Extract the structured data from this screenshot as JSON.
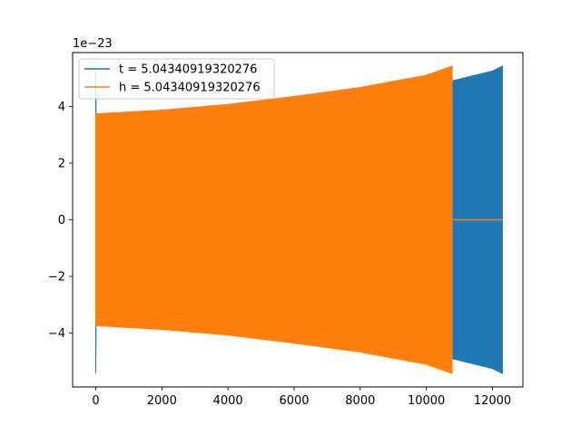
{
  "chart_data": {
    "type": "line",
    "title": "",
    "xlabel": "",
    "ylabel": "",
    "y_offset_text": "1e−23",
    "xlim": [
      -700,
      12920
    ],
    "ylim": [
      -5.9,
      5.9
    ],
    "x_ticks": [
      {
        "value": 0,
        "label": "0"
      },
      {
        "value": 2000,
        "label": "2000"
      },
      {
        "value": 4000,
        "label": "4000"
      },
      {
        "value": 6000,
        "label": "6000"
      },
      {
        "value": 8000,
        "label": "8000"
      },
      {
        "value": 10000,
        "label": "10000"
      },
      {
        "value": 12000,
        "label": "12000"
      }
    ],
    "y_ticks": [
      {
        "value": -4,
        "label": "−4"
      },
      {
        "value": -2,
        "label": "−2"
      },
      {
        "value": 0,
        "label": "0"
      },
      {
        "value": 2,
        "label": "2"
      },
      {
        "value": 4,
        "label": "4"
      }
    ],
    "grid": false,
    "legend_position": "upper-left",
    "series": [
      {
        "name": "t = 5.04340919320276",
        "color": "#1f77b4",
        "description_style": "dense oscillation filled band",
        "x": [
          0,
          10,
          20,
          2000,
          4000,
          6000,
          8000,
          10000,
          10780,
          12000,
          12300
        ],
        "upper": [
          5.3,
          3.7,
          3.7,
          3.85,
          4.05,
          4.35,
          4.65,
          5.05,
          4.9,
          5.25,
          5.42
        ],
        "lower": [
          -5.4,
          -3.7,
          -3.7,
          -3.85,
          -4.05,
          -4.35,
          -4.65,
          -5.05,
          -4.9,
          -5.25,
          -5.42
        ]
      },
      {
        "name": "h = 5.04340919320276",
        "color": "#ff7f0e",
        "description_style": "dense oscillation filled band",
        "x": [
          0,
          10,
          20,
          2000,
          4000,
          6000,
          8000,
          10000,
          10780
        ],
        "upper": [
          3.7,
          3.72,
          3.74,
          3.87,
          4.07,
          4.35,
          4.67,
          5.1,
          5.42
        ],
        "lower": [
          -3.7,
          -3.72,
          -3.74,
          -3.87,
          -4.07,
          -4.35,
          -4.67,
          -5.1,
          -5.42
        ],
        "flat_tail": {
          "x_start": 10780,
          "x_end": 12300,
          "value": 0
        }
      }
    ]
  }
}
